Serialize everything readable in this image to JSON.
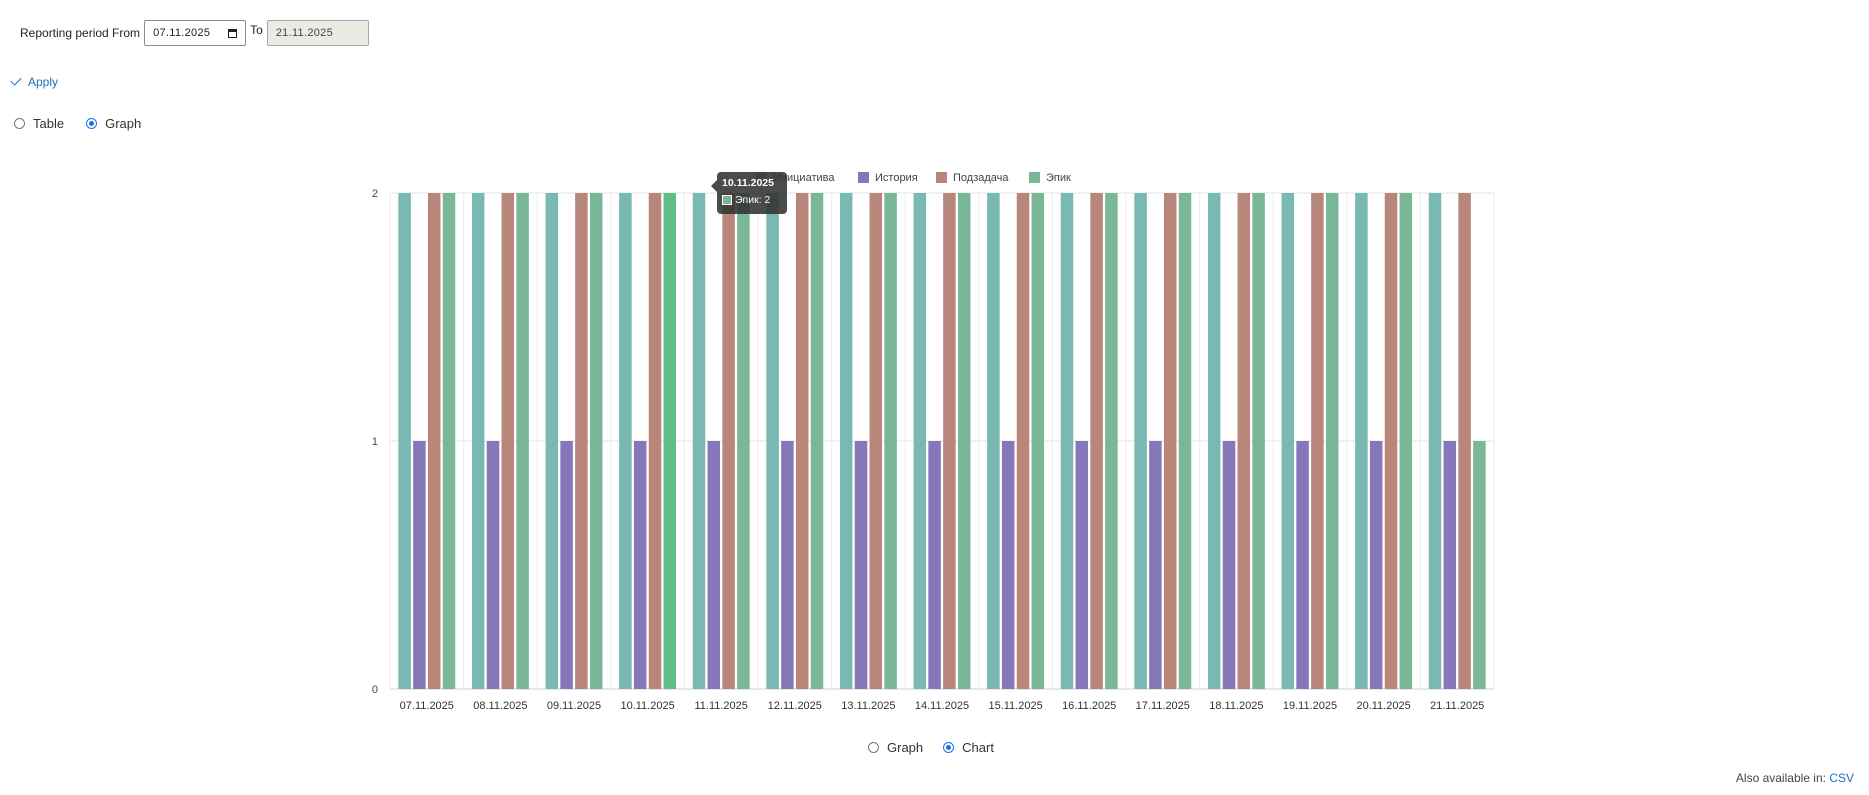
{
  "filters": {
    "period_label": "Reporting period From",
    "from_value": "07.11.2025",
    "to_label": "To",
    "to_value": "21.11.2025",
    "apply_label": "Apply"
  },
  "view_toggle": {
    "options": [
      {
        "label": "Table",
        "checked": false
      },
      {
        "label": "Graph",
        "checked": true
      }
    ]
  },
  "chart_toggle": {
    "options": [
      {
        "label": "Graph",
        "checked": false
      },
      {
        "label": "Chart",
        "checked": true
      }
    ]
  },
  "tooltip": {
    "title": "10.11.2025",
    "row": "Эпик: 2",
    "color": "#7ab797"
  },
  "footer": {
    "also_label": "Also available in:",
    "csv_label": "CSV"
  },
  "chart_data": {
    "type": "bar",
    "categories": [
      "07.11.2025",
      "08.11.2025",
      "09.11.2025",
      "10.11.2025",
      "11.11.2025",
      "12.11.2025",
      "13.11.2025",
      "14.11.2025",
      "15.11.2025",
      "16.11.2025",
      "17.11.2025",
      "18.11.2025",
      "19.11.2025",
      "20.11.2025",
      "21.11.2025"
    ],
    "series": [
      {
        "name": "Инициатива",
        "color": "#7ab8b3",
        "values": [
          2,
          2,
          2,
          2,
          2,
          2,
          2,
          2,
          2,
          2,
          2,
          2,
          2,
          2,
          2
        ]
      },
      {
        "name": "История",
        "color": "#8677b8",
        "values": [
          1,
          1,
          1,
          1,
          1,
          1,
          1,
          1,
          1,
          1,
          1,
          1,
          1,
          1,
          1
        ]
      },
      {
        "name": "Подзадача",
        "color": "#b8877a",
        "values": [
          2,
          2,
          2,
          2,
          2,
          2,
          2,
          2,
          2,
          2,
          2,
          2,
          2,
          2,
          2
        ]
      },
      {
        "name": "Эпик",
        "color": "#7ab797",
        "values": [
          2,
          2,
          2,
          2,
          2,
          2,
          2,
          2,
          2,
          2,
          2,
          2,
          2,
          2,
          1
        ]
      }
    ],
    "ylim": [
      0,
      2
    ],
    "yticks": [
      "0",
      "1",
      "2"
    ],
    "grid": true,
    "legend_position": "top",
    "title": "",
    "xlabel": "",
    "ylabel": ""
  }
}
